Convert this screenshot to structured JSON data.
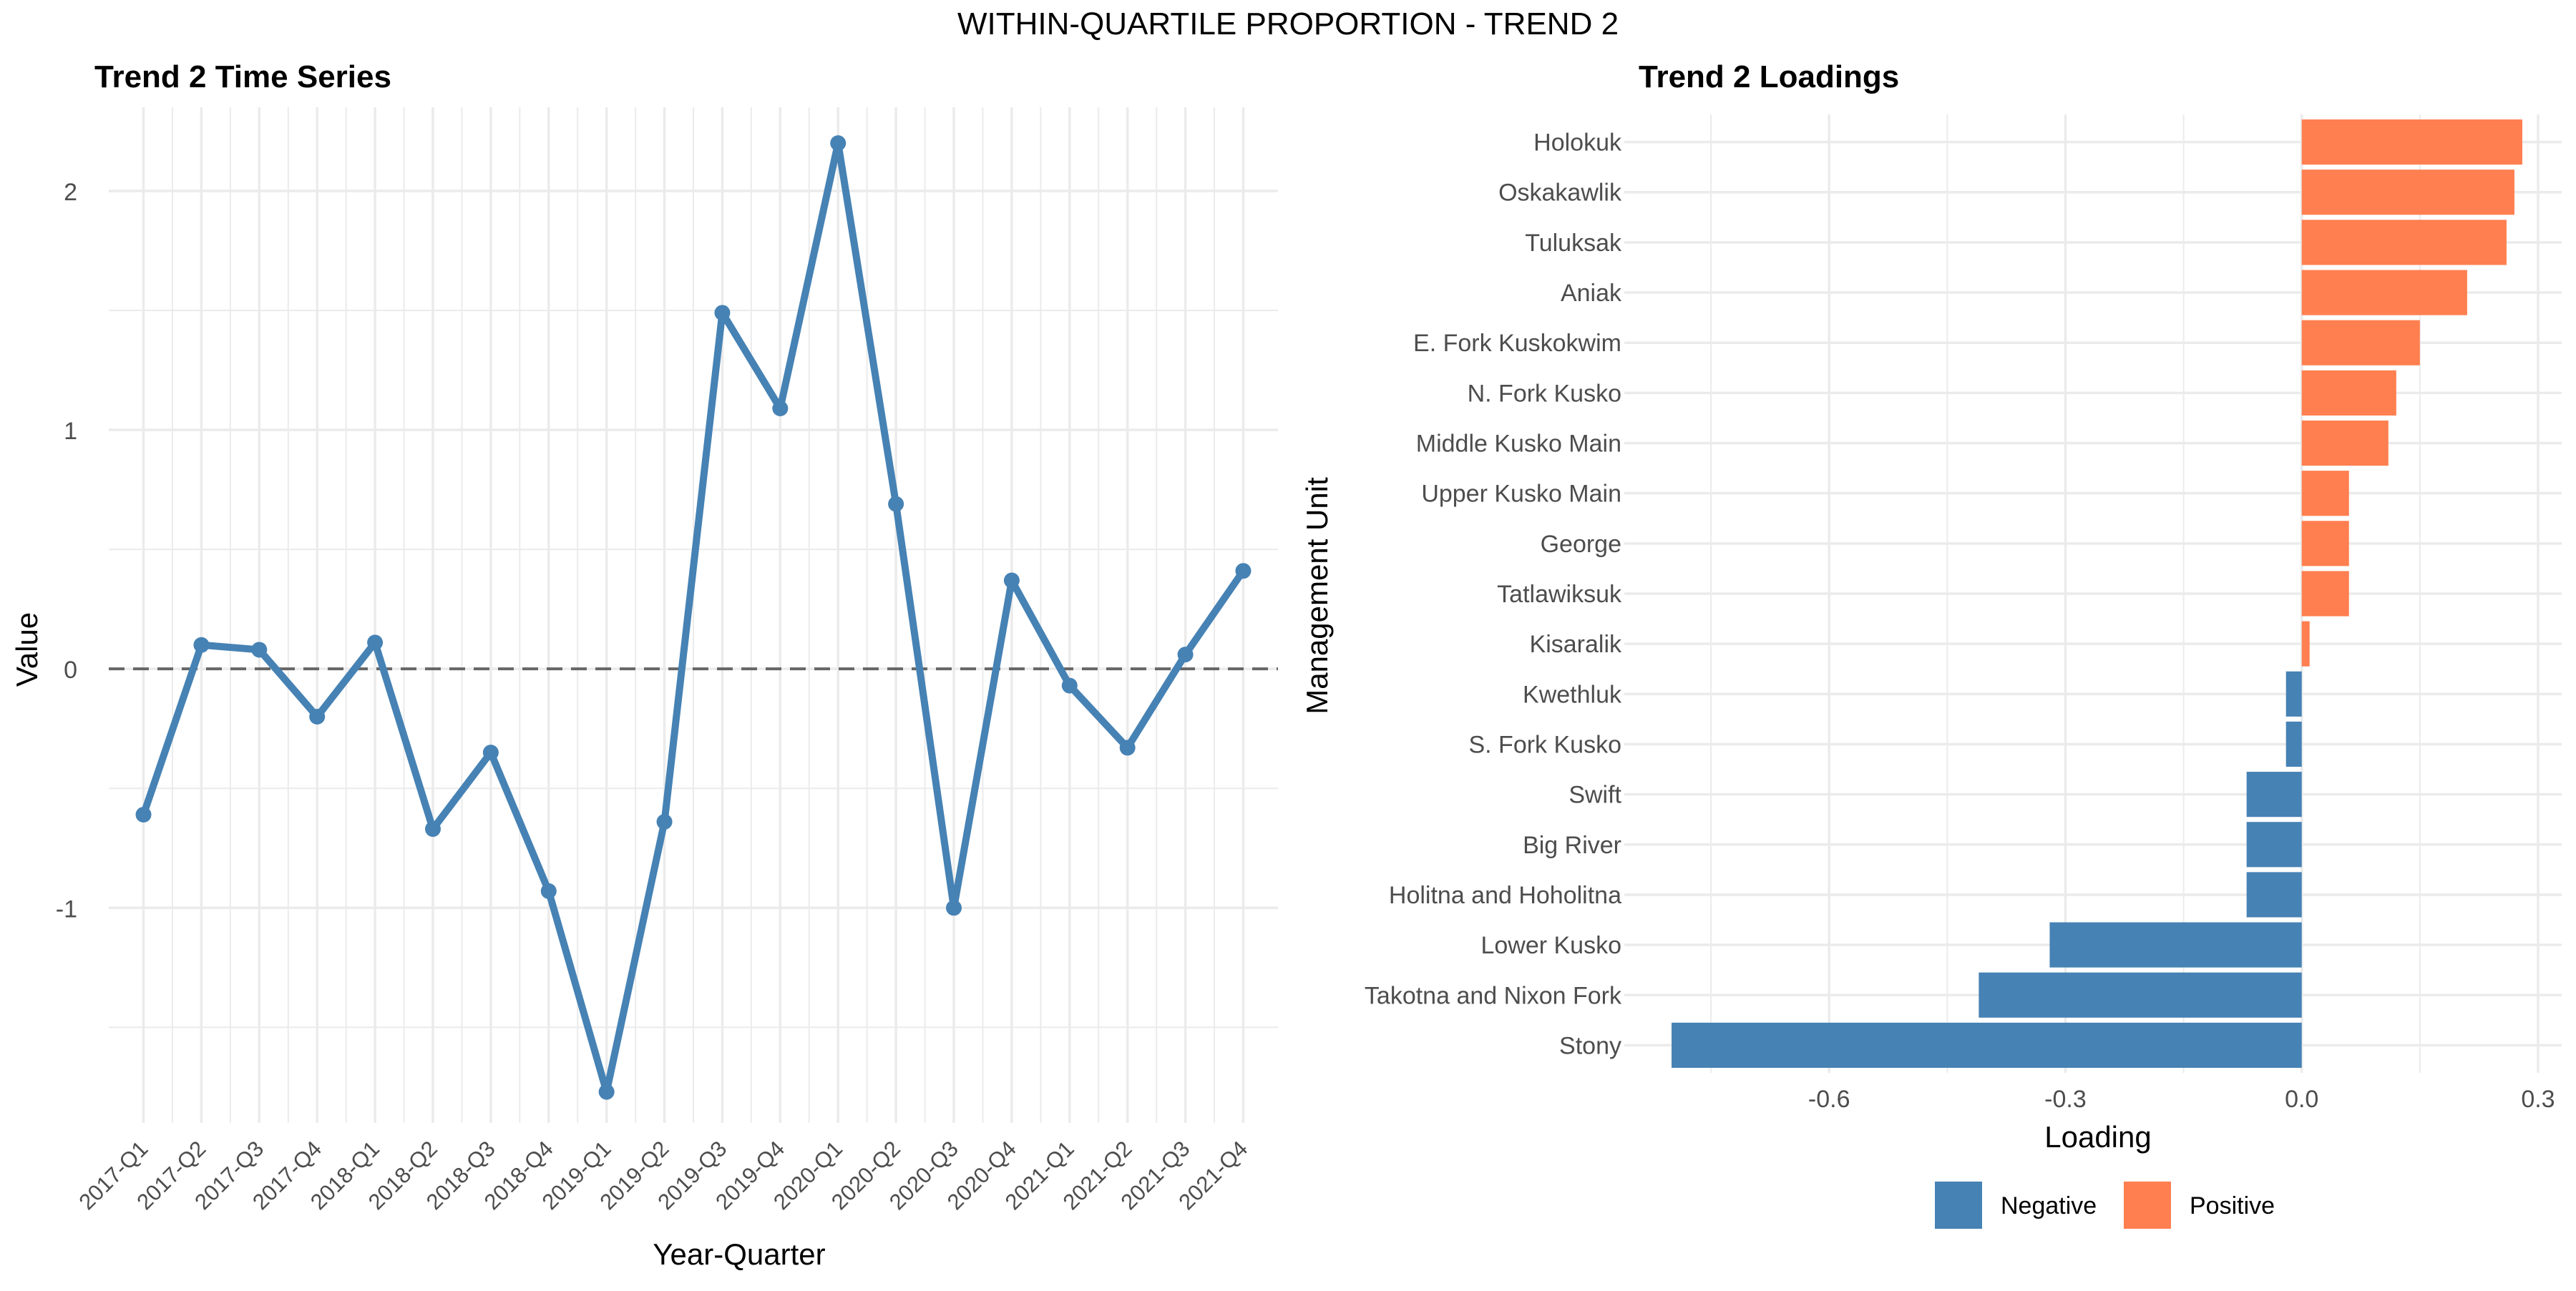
{
  "figure": {
    "title": "WITHIN-QUARTILE PROPORTION - TREND 2"
  },
  "colors": {
    "line": "#4682B4",
    "negative": "#4682B4",
    "positive": "#FF7F50",
    "grid": "#EBEBEB",
    "zero_line": "#666666",
    "text": "#4D4D4D",
    "title_text": "#000000"
  },
  "chart_data": [
    {
      "type": "line",
      "title": "Trend 2 Time Series",
      "xlabel": "Year-Quarter",
      "ylabel": "Value",
      "x": [
        "2017-Q1",
        "2017-Q2",
        "2017-Q3",
        "2017-Q4",
        "2018-Q1",
        "2018-Q2",
        "2018-Q3",
        "2018-Q4",
        "2019-Q1",
        "2019-Q2",
        "2019-Q3",
        "2019-Q4",
        "2020-Q1",
        "2020-Q2",
        "2020-Q3",
        "2020-Q4",
        "2021-Q1",
        "2021-Q2",
        "2021-Q3",
        "2021-Q4"
      ],
      "values": [
        -0.61,
        0.1,
        0.08,
        -0.2,
        0.11,
        -0.67,
        -0.35,
        -0.93,
        -1.77,
        -0.64,
        1.49,
        1.09,
        2.2,
        0.69,
        -1.0,
        0.37,
        -0.07,
        -0.33,
        0.06,
        0.41
      ],
      "ylim": [
        -1.9,
        2.35
      ],
      "yticks": [
        -1,
        0,
        1,
        2
      ],
      "ytick_labels": [
        "-1",
        "0",
        "1",
        "2"
      ],
      "reference_line": 0,
      "grid": true,
      "markers": true
    },
    {
      "type": "bar",
      "orientation": "horizontal",
      "title": "Trend 2 Loadings",
      "xlabel": "Loading",
      "ylabel": "Management Unit",
      "categories": [
        "Holokuk",
        "Oskakawlik",
        "Tuluksak",
        "Aniak",
        "E. Fork Kuskokwim",
        "N. Fork Kusko",
        "Middle Kusko Main",
        "Upper Kusko Main",
        "George",
        "Tatlawiksuk",
        "Kisaralik",
        "Kwethluk",
        "S. Fork Kusko",
        "Swift",
        "Big River",
        "Holitna and Hoholitna",
        "Lower Kusko",
        "Takotna and Nixon Fork",
        "Stony"
      ],
      "values": [
        0.28,
        0.27,
        0.26,
        0.21,
        0.15,
        0.12,
        0.11,
        0.06,
        0.06,
        0.06,
        0.01,
        -0.02,
        -0.02,
        -0.07,
        -0.07,
        -0.07,
        -0.32,
        -0.41,
        -0.8
      ],
      "xlim": [
        -0.86,
        0.33
      ],
      "xticks": [
        -0.6,
        -0.3,
        0.0,
        0.3
      ],
      "xtick_labels": [
        "-0.6",
        "-0.3",
        "0.0",
        "0.3"
      ],
      "grid": true,
      "legend": {
        "position": "bottom",
        "entries": [
          {
            "label": "Negative",
            "color": "#4682B4"
          },
          {
            "label": "Positive",
            "color": "#FF7F50"
          }
        ]
      }
    }
  ]
}
